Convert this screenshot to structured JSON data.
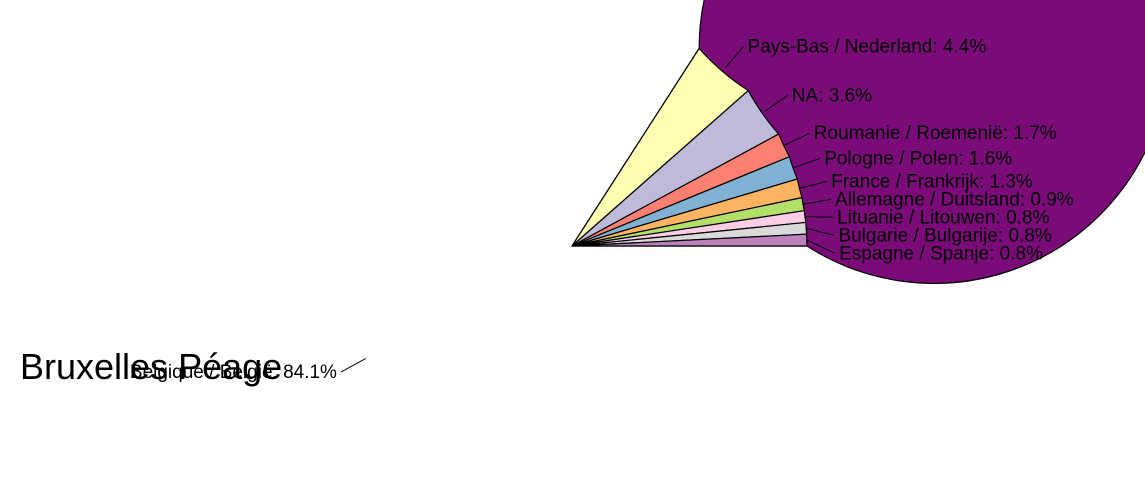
{
  "caption": "Bruxelles Péage",
  "chart_data": {
    "type": "pie",
    "title": "",
    "start_angle_deg": 0,
    "direction": "counterclockwise",
    "slices": [
      {
        "label": "Belgique / België: 84.1%",
        "value": 84.1,
        "color": "#7b0b79"
      },
      {
        "label": "Pays-Bas / Nederland: 4.4%",
        "value": 4.4,
        "color": "#ffffb3"
      },
      {
        "label": "NA: 3.6%",
        "value": 3.6,
        "color": "#bebada"
      },
      {
        "label": "Roumanie / Roemenië: 1.7%",
        "value": 1.7,
        "color": "#fb8072"
      },
      {
        "label": "Pologne / Polen: 1.6%",
        "value": 1.6,
        "color": "#80b1d3"
      },
      {
        "label": "France / Frankrijk: 1.3%",
        "value": 1.3,
        "color": "#fdb462"
      },
      {
        "label": "Allemagne / Duitsland: 0.9%",
        "value": 0.9,
        "color": "#b3de69"
      },
      {
        "label": "Lituanie / Litouwen: 0.8%",
        "value": 0.8,
        "color": "#fccde5"
      },
      {
        "label": "Bulgarie / Bulgarije: 0.8%",
        "value": 0.8,
        "color": "#d9d9d9"
      },
      {
        "label": "Espagne / Spanje: 0.8%",
        "value": 0.8,
        "color": "#bc80bd"
      }
    ]
  }
}
